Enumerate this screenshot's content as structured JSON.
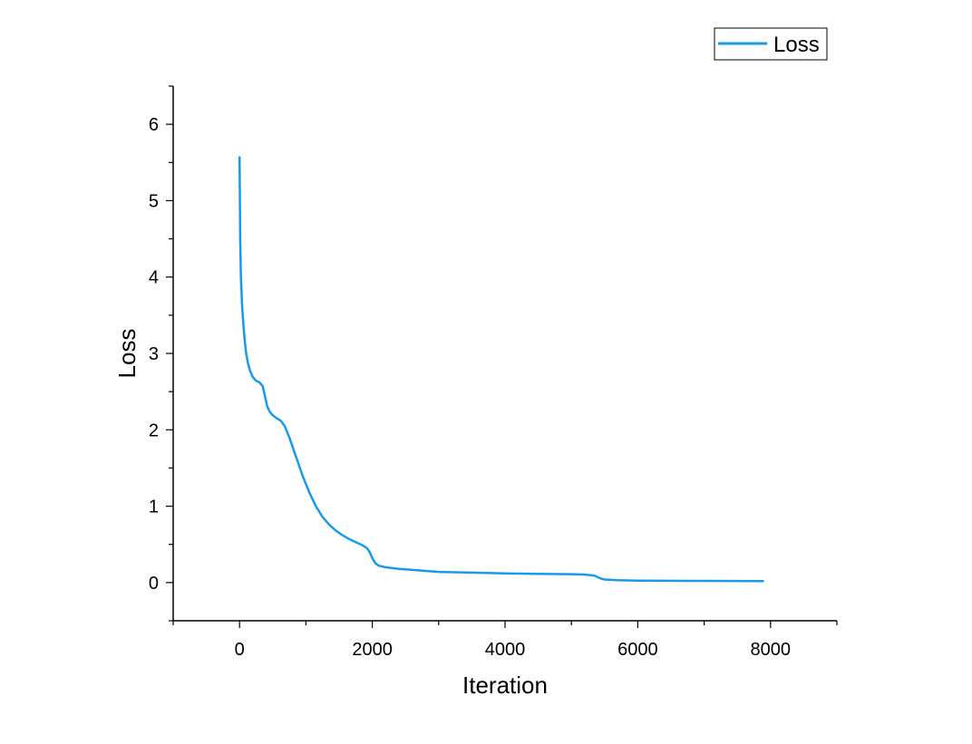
{
  "chart_data": {
    "type": "line",
    "xlabel": "Iteration",
    "ylabel": "Loss",
    "xlim": [
      -1000,
      9000
    ],
    "ylim": [
      -0.5,
      6.5
    ],
    "x_ticks": [
      0,
      2000,
      4000,
      6000,
      8000
    ],
    "x_tick_labels": [
      "0",
      "2000",
      "4000",
      "6000",
      "8000"
    ],
    "y_ticks": [
      0,
      1,
      2,
      3,
      4,
      5,
      6
    ],
    "y_tick_labels": [
      "0",
      "1",
      "2",
      "3",
      "4",
      "5",
      "6"
    ],
    "grid": false,
    "legend_position": "top-right",
    "series": [
      {
        "name": "Loss",
        "color": "#1a9ae6",
        "x": [
          0,
          10,
          20,
          40,
          60,
          80,
          100,
          130,
          160,
          200,
          250,
          300,
          350,
          380,
          420,
          460,
          500,
          560,
          620,
          680,
          750,
          850,
          950,
          1050,
          1150,
          1250,
          1350,
          1450,
          1550,
          1650,
          1750,
          1850,
          1920,
          1960,
          2000,
          2050,
          2100,
          2200,
          2400,
          2700,
          3000,
          3500,
          4000,
          4500,
          5000,
          5200,
          5350,
          5420,
          5500,
          5700,
          6000,
          7000,
          7900
        ],
        "values": [
          5.58,
          4.5,
          4.0,
          3.6,
          3.35,
          3.15,
          3.0,
          2.86,
          2.77,
          2.69,
          2.64,
          2.62,
          2.57,
          2.45,
          2.3,
          2.23,
          2.19,
          2.15,
          2.12,
          2.05,
          1.9,
          1.65,
          1.4,
          1.18,
          1.0,
          0.86,
          0.76,
          0.68,
          0.62,
          0.57,
          0.53,
          0.49,
          0.45,
          0.4,
          0.32,
          0.25,
          0.22,
          0.2,
          0.18,
          0.16,
          0.14,
          0.13,
          0.12,
          0.115,
          0.11,
          0.105,
          0.09,
          0.06,
          0.04,
          0.03,
          0.025,
          0.022,
          0.02
        ]
      }
    ]
  }
}
